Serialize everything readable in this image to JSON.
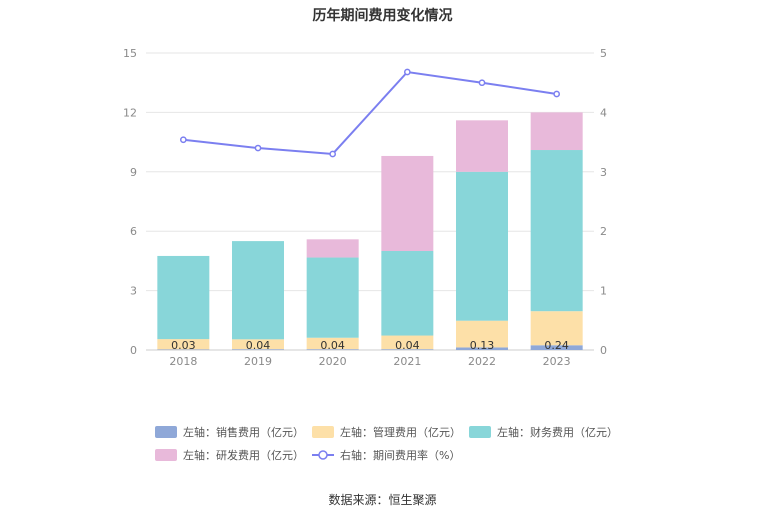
{
  "title": "历年期间费用变化情况",
  "source": "数据来源：恒生聚源",
  "chart_data": {
    "type": "bar",
    "stacked": true,
    "categories": [
      "2018",
      "2019",
      "2020",
      "2021",
      "2022",
      "2023"
    ],
    "y_left": {
      "ticks": [
        "0",
        "3",
        "6",
        "9",
        "12",
        "15"
      ],
      "lim": [
        0,
        15
      ]
    },
    "y_right": {
      "ticks": [
        "0",
        "1",
        "2",
        "3",
        "4",
        "5"
      ],
      "lim": [
        0,
        5
      ]
    },
    "series": [
      {
        "name": "左轴：销售费用（亿元）",
        "axis": "left",
        "color": "#8fa8d8",
        "values": [
          0.03,
          0.04,
          0.04,
          0.04,
          0.13,
          0.24
        ],
        "labels": [
          "0.03",
          "0.04",
          "0.04",
          "0.04",
          "0.13",
          "0.24"
        ]
      },
      {
        "name": "左轴：管理费用（亿元）",
        "axis": "left",
        "color": "#fde0a8",
        "values": [
          0.52,
          0.5,
          0.58,
          0.69,
          1.35,
          1.72
        ]
      },
      {
        "name": "左轴：财务费用（亿元）",
        "axis": "left",
        "color": "#88d6d9",
        "values": [
          4.2,
          4.96,
          4.05,
          4.27,
          7.52,
          8.14
        ]
      },
      {
        "name": "左轴：研发费用（亿元）",
        "axis": "left",
        "color": "#e8b9da",
        "values": [
          0,
          0,
          0.92,
          4.8,
          2.6,
          1.9
        ]
      },
      {
        "name": "右轴：期间费用率（%）",
        "axis": "right",
        "type": "line",
        "color": "#7b7ff0",
        "values": [
          3.54,
          3.4,
          3.3,
          4.68,
          4.5,
          4.31
        ]
      }
    ],
    "legend_position": "bottom",
    "grid": true
  }
}
